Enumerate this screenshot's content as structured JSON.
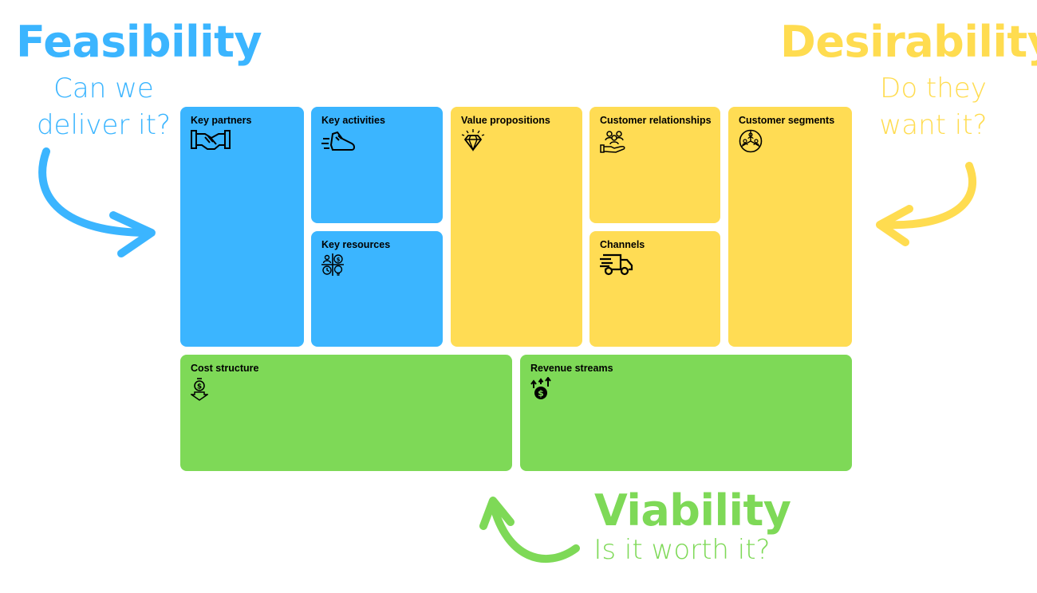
{
  "feasibility": {
    "title": "Feasibility",
    "subtitle": "Can we deliver it?",
    "color": "#3bb5ff"
  },
  "desirability": {
    "title": "Desirability",
    "subtitle": "Do they want it?",
    "color": "#ffdc50"
  },
  "viability": {
    "title": "Viability",
    "subtitle": "Is it worth it?",
    "color": "#7ed957"
  },
  "blocks": {
    "key_partners": {
      "label": "Key partners",
      "icon": "handshake-icon"
    },
    "key_activities": {
      "label": "Key activities",
      "icon": "running-shoe-icon"
    },
    "key_resources": {
      "label": "Key resources",
      "icon": "resources-grid-icon"
    },
    "value_propositions": {
      "label": "Value propositions",
      "icon": "diamond-icon"
    },
    "customer_relationships": {
      "label": "Customer relationships",
      "icon": "hand-group-icon"
    },
    "channels": {
      "label": "Channels",
      "icon": "delivery-truck-icon"
    },
    "customer_segments": {
      "label": "Customer segments",
      "icon": "segments-circle-icon"
    },
    "cost_structure": {
      "label": "Cost structure",
      "icon": "money-down-icon"
    },
    "revenue_streams": {
      "label": "Revenue streams",
      "icon": "money-up-icon"
    }
  }
}
